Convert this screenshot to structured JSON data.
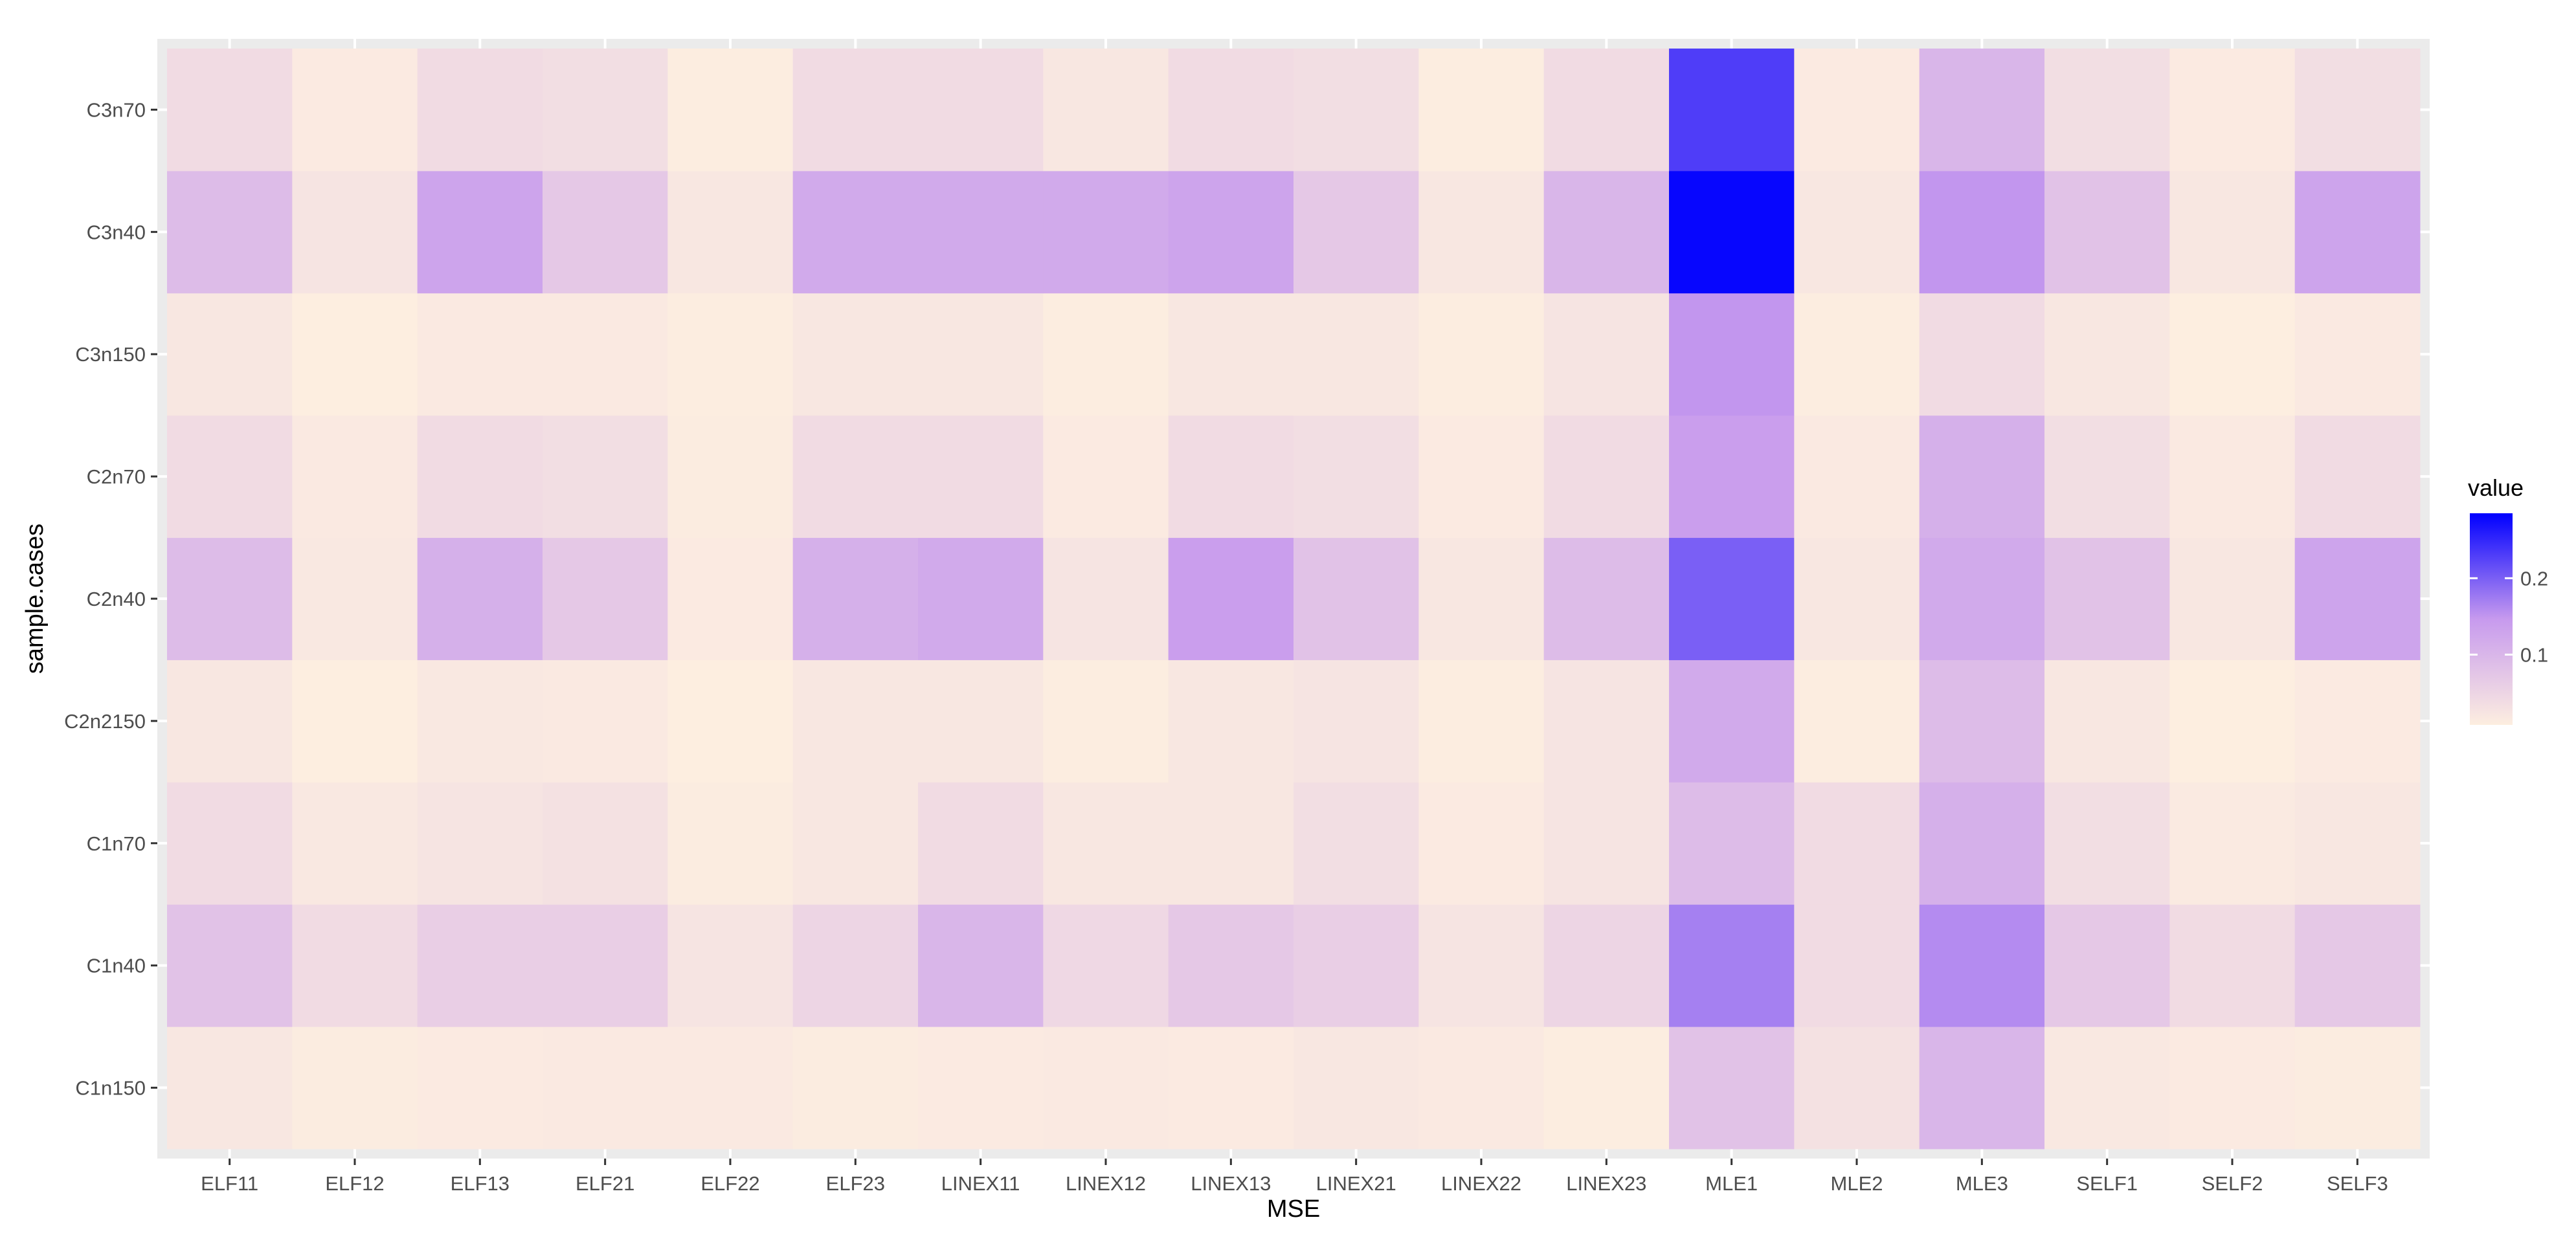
{
  "chart_data": {
    "type": "heatmap",
    "xlabel": "MSE",
    "ylabel": "sample.cases",
    "x_categories": [
      "ELF11",
      "ELF12",
      "ELF13",
      "ELF21",
      "ELF22",
      "ELF23",
      "LINEX11",
      "LINEX12",
      "LINEX13",
      "LINEX21",
      "LINEX22",
      "LINEX23",
      "MLE1",
      "MLE2",
      "MLE3",
      "SELF1",
      "SELF2",
      "SELF3"
    ],
    "y_categories": [
      "C1n150",
      "C1n40",
      "C1n70",
      "C2n2150",
      "C2n40",
      "C2n70",
      "C3n150",
      "C3n40",
      "C3n70"
    ],
    "values": [
      [
        0.02,
        0.012,
        0.014,
        0.016,
        0.016,
        0.012,
        0.014,
        0.016,
        0.014,
        0.02,
        0.016,
        0.01,
        0.08,
        0.03,
        0.1,
        0.018,
        0.014,
        0.012
      ],
      [
        0.08,
        0.04,
        0.06,
        0.06,
        0.025,
        0.05,
        0.1,
        0.045,
        0.07,
        0.06,
        0.025,
        0.05,
        0.17,
        0.04,
        0.16,
        0.07,
        0.04,
        0.07
      ],
      [
        0.04,
        0.018,
        0.025,
        0.03,
        0.012,
        0.02,
        0.04,
        0.02,
        0.02,
        0.035,
        0.014,
        0.025,
        0.09,
        0.04,
        0.11,
        0.035,
        0.015,
        0.02
      ],
      [
        0.02,
        0.008,
        0.018,
        0.016,
        0.008,
        0.02,
        0.02,
        0.01,
        0.02,
        0.025,
        0.01,
        0.025,
        0.12,
        0.01,
        0.09,
        0.02,
        0.008,
        0.014
      ],
      [
        0.09,
        0.018,
        0.11,
        0.07,
        0.014,
        0.11,
        0.12,
        0.025,
        0.14,
        0.08,
        0.02,
        0.09,
        0.2,
        0.02,
        0.12,
        0.08,
        0.02,
        0.13
      ],
      [
        0.04,
        0.016,
        0.04,
        0.035,
        0.012,
        0.04,
        0.04,
        0.014,
        0.04,
        0.035,
        0.014,
        0.04,
        0.14,
        0.016,
        0.11,
        0.035,
        0.016,
        0.04
      ],
      [
        0.02,
        0.008,
        0.016,
        0.016,
        0.01,
        0.02,
        0.02,
        0.01,
        0.02,
        0.02,
        0.01,
        0.025,
        0.15,
        0.01,
        0.04,
        0.02,
        0.008,
        0.016
      ],
      [
        0.09,
        0.025,
        0.13,
        0.07,
        0.02,
        0.12,
        0.12,
        0.12,
        0.13,
        0.07,
        0.02,
        0.1,
        0.28,
        0.02,
        0.15,
        0.08,
        0.02,
        0.13
      ],
      [
        0.04,
        0.014,
        0.04,
        0.035,
        0.01,
        0.04,
        0.04,
        0.02,
        0.04,
        0.035,
        0.01,
        0.04,
        0.23,
        0.014,
        0.1,
        0.035,
        0.014,
        0.035
      ]
    ],
    "legend": {
      "title": "value",
      "position": "right",
      "ticks": [
        0.1,
        0.2
      ],
      "tick_labels": [
        "0.1",
        "0.2"
      ],
      "range": [
        0.008,
        0.285
      ],
      "low_color": "#fdeee0",
      "mid_color": "#c79aee",
      "high_color": "#0000ff"
    },
    "panel_background": "#ebebeb",
    "grid": true
  }
}
